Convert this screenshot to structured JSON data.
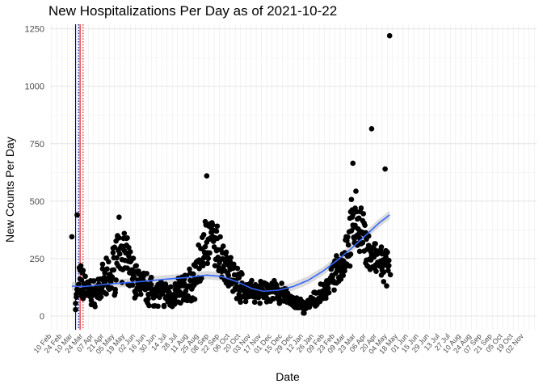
{
  "chart_data": {
    "type": "scatter",
    "title": "New Hospitalizations Per Day as of 2021-10-22",
    "xlabel": "Date",
    "ylabel": "New Counts Per Day",
    "ylim": [
      -60,
      1270
    ],
    "yticks": [
      0,
      250,
      500,
      750,
      1000,
      1250
    ],
    "grid": true,
    "legend": "none",
    "smooth_line": {
      "color": "#3366ff",
      "band_color": "#bdbdbd"
    },
    "vlines": [
      {
        "day": 0,
        "color": "#00008b",
        "style": "solid"
      },
      {
        "day": 4,
        "color": "#00008b",
        "style": "dotted"
      },
      {
        "day": 6,
        "color": "#e41a1c",
        "style": "solid"
      },
      {
        "day": 10,
        "color": "#e41a1c",
        "style": "dotted"
      }
    ],
    "x_tick_labels": [
      "10 Feb",
      "24 Feb",
      "10 Mar",
      "24 Mar",
      "07 Apr",
      "21 Apr",
      "05 May",
      "19 May",
      "02 Jun",
      "16 Jun",
      "30 Jun",
      "14 Jul",
      "28 Jul",
      "11 Aug",
      "25 Aug",
      "08 Sep",
      "22 Sep",
      "06 Oct",
      "20 Oct",
      "03 Nov",
      "17 Nov",
      "01 Dec",
      "15 Dec",
      "29 Dec",
      "12 Jan",
      "26 Jan",
      "09 Feb",
      "23 Feb",
      "09 Mar",
      "23 Mar",
      "06 Apr",
      "20 Apr",
      "04 May",
      "18 May",
      "01 Jun",
      "15 Jun",
      "29 Jun",
      "13 Jul",
      "27 Jul",
      "10 Aug",
      "24 Aug",
      "07 Sep",
      "21 Sep",
      "05 Oct",
      "19 Oct",
      "02 Nov"
    ],
    "x_tick_start_day": -32,
    "x_tick_step_days": 14,
    "x_range_days": [
      -34,
      615
    ],
    "anchors": [
      [
        0,
        60,
        40
      ],
      [
        5,
        140,
        60
      ],
      [
        10,
        140,
        60
      ],
      [
        15,
        110,
        50
      ],
      [
        25,
        100,
        40
      ],
      [
        35,
        130,
        60
      ],
      [
        45,
        160,
        70
      ],
      [
        52,
        210,
        90
      ],
      [
        58,
        330,
        80
      ],
      [
        64,
        260,
        90
      ],
      [
        70,
        210,
        80
      ],
      [
        80,
        160,
        60
      ],
      [
        95,
        120,
        50
      ],
      [
        110,
        100,
        45
      ],
      [
        125,
        90,
        40
      ],
      [
        140,
        110,
        50
      ],
      [
        155,
        130,
        60
      ],
      [
        165,
        200,
        80
      ],
      [
        172,
        320,
        90
      ],
      [
        180,
        340,
        70
      ],
      [
        190,
        280,
        80
      ],
      [
        200,
        240,
        70
      ],
      [
        210,
        170,
        60
      ],
      [
        225,
        120,
        45
      ],
      [
        240,
        100,
        35
      ],
      [
        255,
        110,
        40
      ],
      [
        270,
        100,
        35
      ],
      [
        285,
        80,
        30
      ],
      [
        295,
        50,
        25
      ],
      [
        305,
        40,
        20
      ],
      [
        315,
        60,
        25
      ],
      [
        325,
        80,
        30
      ],
      [
        340,
        150,
        40
      ],
      [
        355,
        230,
        50
      ],
      [
        365,
        330,
        90
      ],
      [
        372,
        420,
        100
      ],
      [
        380,
        380,
        90
      ],
      [
        388,
        300,
        70
      ],
      [
        395,
        260,
        60
      ],
      [
        402,
        240,
        60
      ],
      [
        410,
        220,
        60
      ],
      [
        418,
        200,
        60
      ]
    ],
    "points_outliers": [
      {
        "day": -5,
        "value": 345
      },
      {
        "day": 2,
        "value": 440
      },
      {
        "day": 175,
        "value": 610
      },
      {
        "day": 370,
        "value": 665
      },
      {
        "day": 395,
        "value": 815
      },
      {
        "day": 413,
        "value": 640
      },
      {
        "day": 419,
        "value": 1220
      },
      {
        "day": 420,
        "value": 180
      }
    ],
    "smooth_y": [
      [
        -5,
        130
      ],
      [
        10,
        128
      ],
      [
        40,
        138
      ],
      [
        80,
        148
      ],
      [
        120,
        160
      ],
      [
        150,
        168
      ],
      [
        175,
        178
      ],
      [
        195,
        172
      ],
      [
        215,
        150
      ],
      [
        235,
        120
      ],
      [
        250,
        108
      ],
      [
        270,
        112
      ],
      [
        290,
        128
      ],
      [
        310,
        155
      ],
      [
        330,
        195
      ],
      [
        350,
        245
      ],
      [
        370,
        300
      ],
      [
        390,
        360
      ],
      [
        405,
        405
      ],
      [
        419,
        440
      ]
    ]
  }
}
